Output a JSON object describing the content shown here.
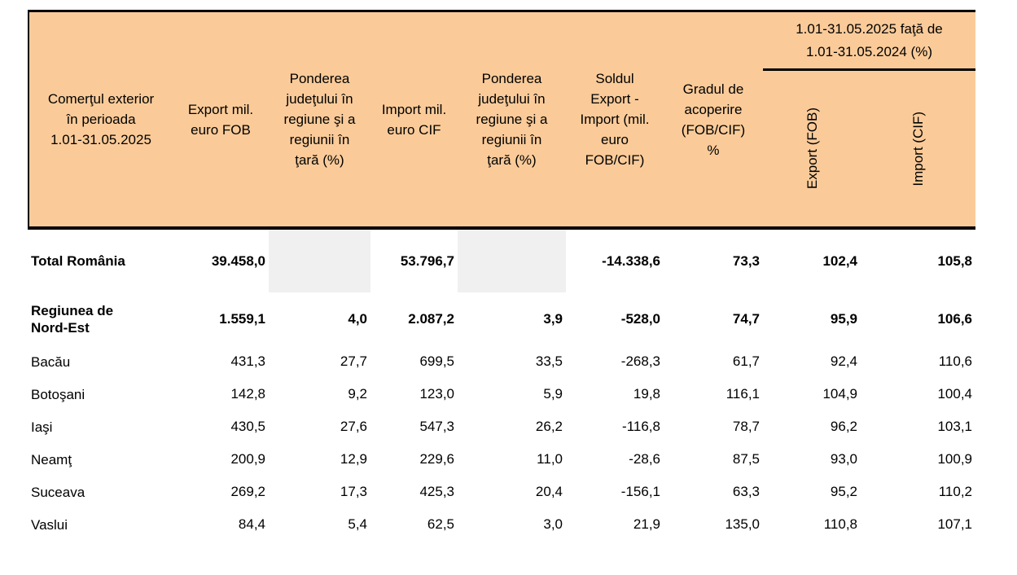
{
  "colors": {
    "header_bg": "#facb99",
    "empty_cell_bg": "#f0f0f0",
    "border": "#000000"
  },
  "table": {
    "header": {
      "period": "Comerţul exterior\nîn perioada\n1.01-31.05.2025",
      "export": "Export mil.\neuro FOB",
      "share_export": "Ponderea\njudeţului în\nregiune şi a\nregiunii în\nţară (%)",
      "import": "Import mil.\neuro CIF",
      "share_import": "Ponderea\njudeţului în\nregiune şi a\nregiunii în\nţară (%)",
      "balance": "Soldul\nExport -\nImport (mil.\neuro\nFOB/CIF)",
      "coverage": "Gradul de\nacoperire\n(FOB/CIF)\n%",
      "comparison_group": "1.01-31.05.2025 faţă de\n1.01-31.05.2024 (%)",
      "comparison_export": "Export (FOB)",
      "comparison_import": "Import (CIF)"
    },
    "rows": [
      {
        "label": "Total România",
        "bold": true,
        "grayCols": [
          1,
          3
        ],
        "cells": [
          "39.458,0",
          "",
          "53.796,7",
          "",
          "-14.338,6",
          "73,3",
          "102,4",
          "105,8"
        ]
      },
      {
        "label": "Regiunea de\nNord-Est",
        "bold": true,
        "cells": [
          "1.559,1",
          "4,0",
          "2.087,2",
          "3,9",
          "-528,0",
          "74,7",
          "95,9",
          "106,6"
        ]
      },
      {
        "label": "Bacău",
        "cells": [
          "431,3",
          "27,7",
          "699,5",
          "33,5",
          "-268,3",
          "61,7",
          "92,4",
          "110,6"
        ]
      },
      {
        "label": "Botoşani",
        "cells": [
          "142,8",
          "9,2",
          "123,0",
          "5,9",
          "19,8",
          "116,1",
          "104,9",
          "100,4"
        ]
      },
      {
        "label": "Iaşi",
        "cells": [
          "430,5",
          "27,6",
          "547,3",
          "26,2",
          "-116,8",
          "78,7",
          "96,2",
          "103,1"
        ]
      },
      {
        "label": "Neamţ",
        "cells": [
          "200,9",
          "12,9",
          "229,6",
          "11,0",
          "-28,6",
          "87,5",
          "93,0",
          "100,9"
        ]
      },
      {
        "label": "Suceava",
        "cells": [
          "269,2",
          "17,3",
          "425,3",
          "20,4",
          "-156,1",
          "63,3",
          "95,2",
          "110,2"
        ]
      },
      {
        "label": "Vaslui",
        "cells": [
          "84,4",
          "5,4",
          "62,5",
          "3,0",
          "21,9",
          "135,0",
          "110,8",
          "107,1"
        ]
      }
    ]
  }
}
